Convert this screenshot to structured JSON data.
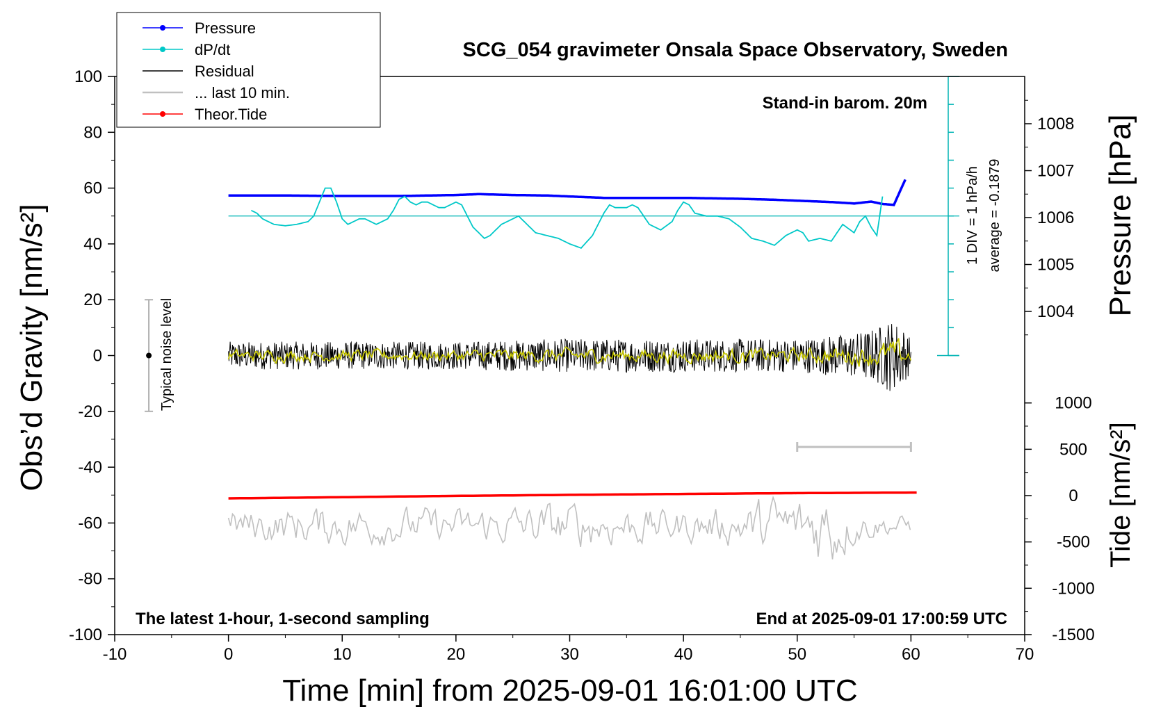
{
  "chart_data": {
    "type": "line",
    "title": "SCG_054 gravimeter Onsala Space Observatory, Sweden",
    "xlabel": "Time [min] from 2025-09-01 16:01:00 UTC",
    "ylabel_left": "Obs’d Gravity [nm/s²]",
    "ylabel_pressure": "Pressure [hPa]",
    "ylabel_tide": "Tide [nm/s²]",
    "xlim": [
      -10,
      70
    ],
    "ylim": [
      -100,
      100
    ],
    "x_ticks": [
      -10,
      0,
      10,
      20,
      30,
      40,
      50,
      60,
      70
    ],
    "y_ticks": [
      -100,
      -80,
      -60,
      -40,
      -20,
      0,
      20,
      40,
      60,
      80,
      100
    ],
    "pressure_ticks": [
      1004,
      1005,
      1006,
      1007,
      1008
    ],
    "tide_ticks": [
      -1500,
      -1000,
      -500,
      0,
      500,
      1000
    ],
    "grid": false,
    "legend_position": "top-left",
    "legend": [
      {
        "label": "Pressure",
        "color": "#0000ff",
        "marker": "dot"
      },
      {
        "label": "dP/dt",
        "color": "#00c8c8",
        "marker": "dot"
      },
      {
        "label": "Residual",
        "color": "#000000",
        "marker": "none"
      },
      {
        "label": "... last 10 min.",
        "color": "#c0c0c0",
        "marker": "none"
      },
      {
        "label": "Theor.Tide",
        "color": "#ff0000",
        "marker": "dot"
      }
    ],
    "annotations": {
      "barometer": "Stand-in barom. 20m",
      "latest": "The latest 1-hour, 1-second sampling",
      "end": "End at 2025-09-01 17:00:59 UTC",
      "div": "1 DIV = 1 hPa/h",
      "average": "average = -0.1879",
      "noise": "Typical noise level"
    },
    "series": [
      {
        "name": "Pressure",
        "color": "#0000ff",
        "axis": "pressure",
        "x": [
          0,
          5,
          10,
          15,
          20,
          22,
          25,
          28,
          30,
          33,
          36,
          40,
          45,
          48,
          50,
          53,
          55,
          56.5,
          57.5,
          58.5,
          59.5
        ],
        "values": [
          1006.47,
          1006.47,
          1006.46,
          1006.46,
          1006.48,
          1006.5,
          1006.48,
          1006.47,
          1006.45,
          1006.42,
          1006.42,
          1006.42,
          1006.4,
          1006.38,
          1006.36,
          1006.33,
          1006.3,
          1006.34,
          1006.29,
          1006.27,
          1006.81
        ]
      },
      {
        "name": "dP/dt",
        "color": "#00c8c8",
        "axis": "left",
        "x": [
          2,
          2.5,
          3,
          3.5,
          4,
          5,
          6,
          7,
          7.5,
          8,
          8.5,
          9,
          9.5,
          10,
          10.5,
          11,
          11.5,
          12,
          13,
          14,
          14.5,
          15,
          15.5,
          16,
          16.5,
          17,
          17.5,
          18,
          18.5,
          19,
          19.5,
          20,
          20.5,
          21,
          21.5,
          22,
          22.5,
          23,
          24,
          25,
          25.5,
          26,
          27,
          28,
          29,
          30,
          31,
          32,
          33,
          33.5,
          34,
          35,
          35.5,
          36,
          37,
          38,
          39,
          39.5,
          40,
          40.5,
          41,
          42,
          43,
          44,
          45,
          46,
          47,
          48,
          49,
          50,
          50.5,
          51,
          52,
          53,
          54,
          55,
          55.5,
          56,
          56.5,
          57,
          57.5
        ],
        "values": [
          52,
          51,
          49,
          48,
          47,
          46.5,
          47,
          48,
          50,
          55,
          60,
          60,
          55,
          49,
          47,
          48,
          49,
          49,
          47,
          49,
          52,
          56,
          57,
          55,
          54,
          55,
          55,
          54,
          53,
          53,
          54,
          55,
          54,
          50,
          46,
          44,
          42,
          43,
          47,
          49,
          50,
          48,
          44,
          43,
          42,
          40,
          38.5,
          43,
          51,
          54,
          53,
          53,
          54,
          53,
          47,
          45,
          48,
          52,
          55,
          54,
          51,
          50,
          50,
          49,
          46,
          42,
          41,
          39.5,
          43,
          45,
          44,
          41,
          42,
          41,
          47,
          44,
          48,
          50,
          46,
          43,
          57
        ]
      },
      {
        "name": "Residual",
        "color": "#000000",
        "axis": "left",
        "x": [
          0,
          10,
          20,
          30,
          40,
          50,
          55,
          57,
          58,
          59,
          60
        ],
        "values": [
          0,
          0,
          0,
          0,
          0,
          0,
          0,
          0,
          0,
          0,
          0
        ],
        "amplitude": [
          5,
          5,
          5,
          6,
          6,
          6,
          8,
          10,
          13,
          12,
          6
        ]
      },
      {
        "name": "... last 10 min.",
        "color": "#c0c0c0",
        "axis": "left",
        "x": [
          0,
          10,
          20,
          30,
          40,
          45,
          48,
          50,
          52,
          53,
          55,
          58,
          60
        ],
        "values": [
          -61,
          -61,
          -61,
          -61,
          -61,
          -61,
          -61,
          -61,
          -61,
          -61,
          -61,
          -61,
          -61
        ],
        "amplitude": [
          5,
          6,
          5,
          7,
          5,
          6,
          9,
          8,
          12,
          13,
          5,
          3,
          3
        ]
      },
      {
        "name": "Theor.Tide",
        "color": "#ff0000",
        "axis": "tide",
        "x": [
          0,
          10,
          20,
          30,
          40,
          50,
          60.5
        ],
        "values": [
          -30,
          -17,
          -3,
          8,
          18,
          27,
          33
        ]
      }
    ]
  }
}
